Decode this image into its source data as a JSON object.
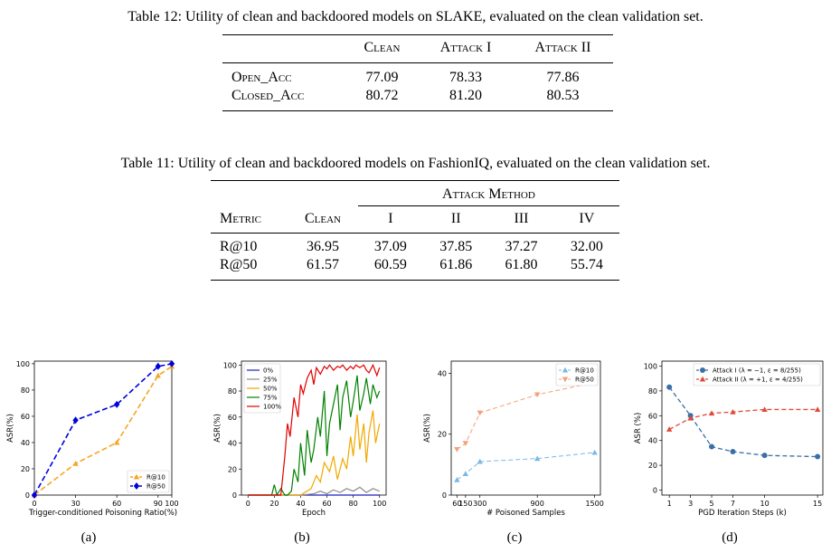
{
  "table12": {
    "caption": "Table 12: Utility of clean and backdoored models on SLAKE, evaluated on the clean validation set.",
    "headers": [
      "",
      "Clean",
      "Attack I",
      "Attack II"
    ],
    "rows": [
      {
        "metric": "Open_Acc",
        "clean": "77.09",
        "attack1": "78.33",
        "attack2": "77.86"
      },
      {
        "metric": "Closed_Acc",
        "clean": "80.72",
        "attack1": "81.20",
        "attack2": "80.53"
      }
    ]
  },
  "table11": {
    "caption": "Table 11: Utility of clean and backdoored models on FashionIQ, evaluated on the clean validation set.",
    "group_header": "Attack Method",
    "headers": [
      "Metric",
      "Clean",
      "I",
      "II",
      "III",
      "IV"
    ],
    "rows": [
      {
        "metric": "R@10",
        "clean": "36.95",
        "i": "37.09",
        "ii": "37.85",
        "iii": "37.27",
        "iv": "32.00"
      },
      {
        "metric": "R@50",
        "clean": "61.57",
        "i": "60.59",
        "ii": "61.86",
        "iii": "61.80",
        "iv": "55.74"
      }
    ]
  },
  "chart_data": [
    {
      "type": "line",
      "subfigure": "(a)",
      "xlabel": "Trigger-conditioned Poisoning Ratio(%)",
      "ylabel": "ASR(%)",
      "xticks": [
        0,
        30,
        60,
        90,
        100
      ],
      "yticks": [
        0,
        20,
        40,
        60,
        80,
        100
      ],
      "xlim": [
        0,
        100
      ],
      "ylim": [
        0,
        102
      ],
      "legend_position": "lower-right",
      "series": [
        {
          "name": "R@10",
          "color": "#f5a623",
          "marker": "triangle",
          "x": [
            0,
            30,
            60,
            90,
            100
          ],
          "y": [
            0,
            24,
            40,
            91,
            98
          ]
        },
        {
          "name": "R@50",
          "color": "#0000dd",
          "marker": "diamond",
          "x": [
            0,
            30,
            60,
            90,
            100
          ],
          "y": [
            0,
            57,
            69,
            98,
            100
          ]
        }
      ]
    },
    {
      "type": "line",
      "subfigure": "(b)",
      "xlabel": "Epoch",
      "ylabel": "ASR(%)",
      "xticks": [
        0,
        20,
        40,
        60,
        80,
        100
      ],
      "yticks": [
        0,
        20,
        40,
        60,
        80,
        100
      ],
      "xlim": [
        -5,
        105
      ],
      "ylim": [
        0,
        103
      ],
      "legend_position": "upper-left",
      "series": [
        {
          "name": "0%",
          "color": "#1f1fbf",
          "x": [
            0,
            20,
            40,
            60,
            80,
            100
          ],
          "y": [
            0,
            0,
            0,
            0,
            0,
            0
          ]
        },
        {
          "name": "25%",
          "color": "#8c8c8c",
          "x": [
            0,
            20,
            40,
            50,
            55,
            60,
            65,
            70,
            75,
            80,
            85,
            90,
            95,
            100
          ],
          "y": [
            0,
            0,
            0,
            1,
            3,
            1,
            4,
            2,
            5,
            3,
            6,
            2,
            5,
            3
          ]
        },
        {
          "name": "50%",
          "color": "#f0a800",
          "x": [
            0,
            40,
            48,
            52,
            55,
            58,
            62,
            65,
            68,
            72,
            75,
            78,
            80,
            83,
            85,
            88,
            90,
            92,
            95,
            97,
            100
          ],
          "y": [
            0,
            0,
            5,
            15,
            10,
            25,
            18,
            30,
            12,
            28,
            20,
            45,
            30,
            62,
            35,
            55,
            25,
            48,
            65,
            40,
            55
          ]
        },
        {
          "name": "75%",
          "color": "#008000",
          "x": [
            0,
            18,
            20,
            22,
            25,
            28,
            30,
            33,
            35,
            38,
            40,
            43,
            45,
            48,
            50,
            53,
            55,
            58,
            60,
            62,
            65,
            68,
            70,
            72,
            75,
            78,
            80,
            83,
            85,
            88,
            90,
            93,
            95,
            98,
            100
          ],
          "y": [
            0,
            0,
            8,
            0,
            5,
            0,
            0,
            3,
            20,
            10,
            40,
            15,
            50,
            25,
            35,
            60,
            45,
            80,
            30,
            55,
            70,
            85,
            50,
            75,
            88,
            60,
            72,
            92,
            65,
            78,
            90,
            70,
            85,
            75,
            80
          ]
        },
        {
          "name": "100%",
          "color": "#e00000",
          "x": [
            0,
            25,
            28,
            30,
            32,
            35,
            38,
            40,
            42,
            45,
            48,
            50,
            52,
            55,
            58,
            60,
            62,
            65,
            68,
            70,
            72,
            75,
            78,
            80,
            82,
            85,
            88,
            90,
            92,
            95,
            98,
            100
          ],
          "y": [
            0,
            0,
            30,
            55,
            45,
            75,
            60,
            85,
            78,
            90,
            96,
            85,
            98,
            93,
            99,
            97,
            100,
            96,
            99,
            98,
            100,
            96,
            99,
            97,
            100,
            98,
            100,
            96,
            94,
            100,
            92,
            98
          ]
        }
      ]
    },
    {
      "type": "line",
      "subfigure": "(c)",
      "xlabel": "# Poisoned Samples",
      "ylabel": "ASR(%)",
      "xticks": [
        60,
        150,
        300,
        900,
        1500
      ],
      "yticks": [
        0,
        20,
        40
      ],
      "xlim": [
        0,
        1560
      ],
      "ylim": [
        0,
        44
      ],
      "legend_position": "upper-right",
      "series": [
        {
          "name": "R@10",
          "color": "#7ab8e8",
          "marker": "triangle",
          "x": [
            60,
            150,
            300,
            900,
            1500
          ],
          "y": [
            5,
            7,
            11,
            12,
            14
          ]
        },
        {
          "name": "R@50",
          "color": "#f4a07a",
          "marker": "triangle-down",
          "x": [
            60,
            150,
            300,
            900,
            1500
          ],
          "y": [
            15,
            17,
            27,
            33,
            37
          ]
        }
      ]
    },
    {
      "type": "line",
      "subfigure": "(d)",
      "xlabel": "PGD Iteration Steps (k)",
      "ylabel": "ASR (%)",
      "xticks": [
        1,
        3,
        5,
        7,
        10,
        15
      ],
      "yticks": [
        0,
        20,
        40,
        60,
        80,
        100
      ],
      "xlim": [
        0.3,
        15.5
      ],
      "ylim": [
        -4,
        104
      ],
      "legend_position": "top-right",
      "series": [
        {
          "name": "Attack I (λ = −1, ε = 8/255)",
          "color": "#3b6fa8",
          "marker": "circle",
          "x": [
            1,
            3,
            5,
            7,
            10,
            15
          ],
          "y": [
            83,
            60,
            35,
            31,
            28,
            27
          ]
        },
        {
          "name": "Attack II (λ = +1, ε = 4/255)",
          "color": "#e04a3a",
          "marker": "triangle",
          "x": [
            1,
            3,
            5,
            7,
            10,
            15
          ],
          "y": [
            49,
            58,
            62,
            63,
            65,
            65
          ]
        }
      ]
    }
  ]
}
